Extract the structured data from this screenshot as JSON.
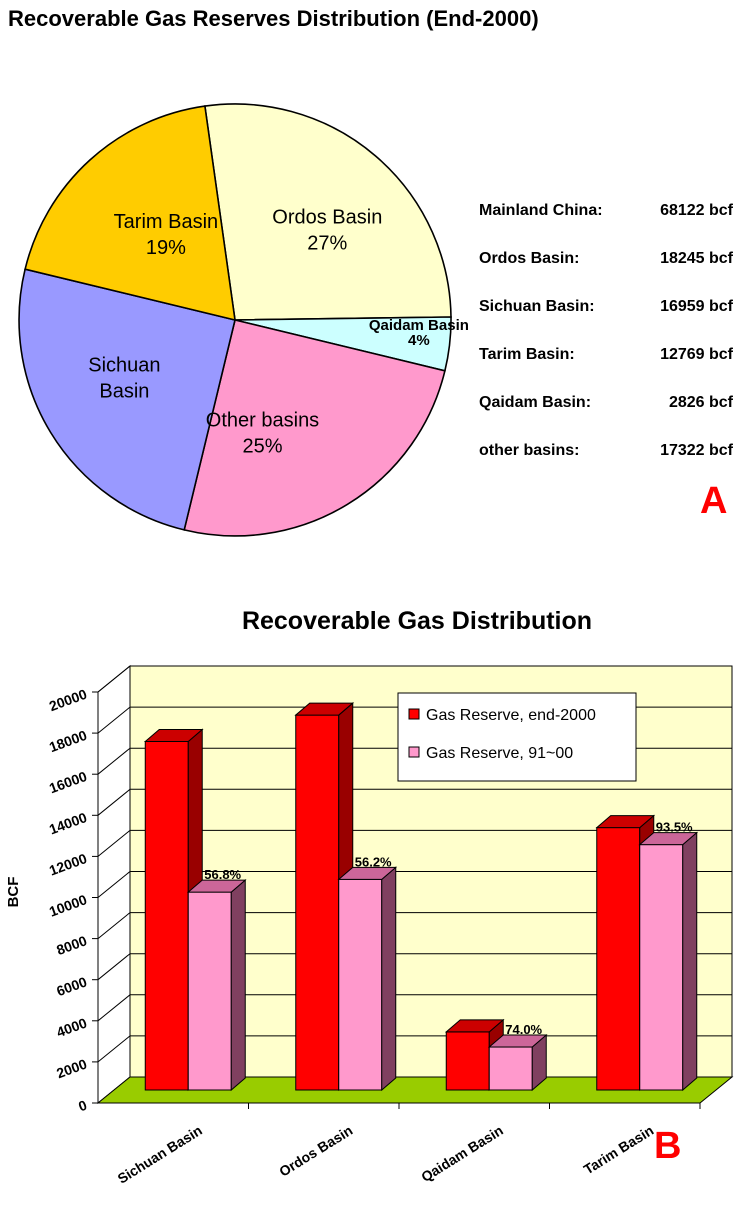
{
  "pie_panel": {
    "title": "Recoverable Gas Reserves Distribution (End-2000)",
    "panel_label": "A",
    "label_color": "#ff0000",
    "stats": [
      {
        "name": "Mainland China:",
        "value": "68122 bcf"
      },
      {
        "name": "Ordos Basin:",
        "value": "18245 bcf"
      },
      {
        "name": "Sichuan Basin:",
        "value": "16959 bcf"
      },
      {
        "name": "Tarim Basin:",
        "value": "12769 bcf"
      },
      {
        "name": "Qaidam Basin:",
        "value": "2826 bcf"
      },
      {
        "name": "other basins:",
        "value": "17322 bcf"
      }
    ]
  },
  "bar_panel": {
    "panel_label": "B",
    "label_color": "#ff0000"
  },
  "chart_data": [
    {
      "type": "pie",
      "title": "Recoverable Gas Reserves Distribution (End-2000)",
      "slices": [
        {
          "label": "Ordos Basin",
          "pct_label": "27%",
          "value": 27,
          "color": "#ffffcc"
        },
        {
          "label": "Qaidam Basin",
          "pct_label": "4%",
          "value": 4,
          "color": "#ccffff"
        },
        {
          "label": "Other basins",
          "pct_label": "25%",
          "value": 25,
          "color": "#ff99cc"
        },
        {
          "label": "Sichuan Basin",
          "pct_label": "",
          "value": 25,
          "color": "#9999ff"
        },
        {
          "label": "Tarim Basin",
          "pct_label": "19%",
          "value": 19,
          "color": "#ffcc00"
        }
      ]
    },
    {
      "type": "bar",
      "title": "Recoverable Gas Distribution",
      "xlabel": "",
      "ylabel": "BCF",
      "ylim": [
        0,
        20000
      ],
      "yticks": [
        "0",
        "2000",
        "4000",
        "6000",
        "8000",
        "10000",
        "12000",
        "14000",
        "16000",
        "18000",
        "20000"
      ],
      "categories": [
        "Sichuan Basin",
        "Ordos Basin",
        "Qaidam Basin",
        "Tarim Basin"
      ],
      "series": [
        {
          "name": "Gas Reserve, end-2000",
          "color": "#ff0000",
          "values": [
            16959,
            18245,
            2826,
            12769
          ]
        },
        {
          "name": "Gas Reserve, 91~00",
          "color": "#ff99cc",
          "values": [
            9630,
            10250,
            2090,
            11940
          ]
        }
      ],
      "bar_labels": [
        "56.8%",
        "56.2%",
        "74.0%",
        "93.5%"
      ],
      "legend": "top-right",
      "wall_color": "#ffffcc",
      "floor_color": "#99cc00",
      "grid": true
    }
  ]
}
